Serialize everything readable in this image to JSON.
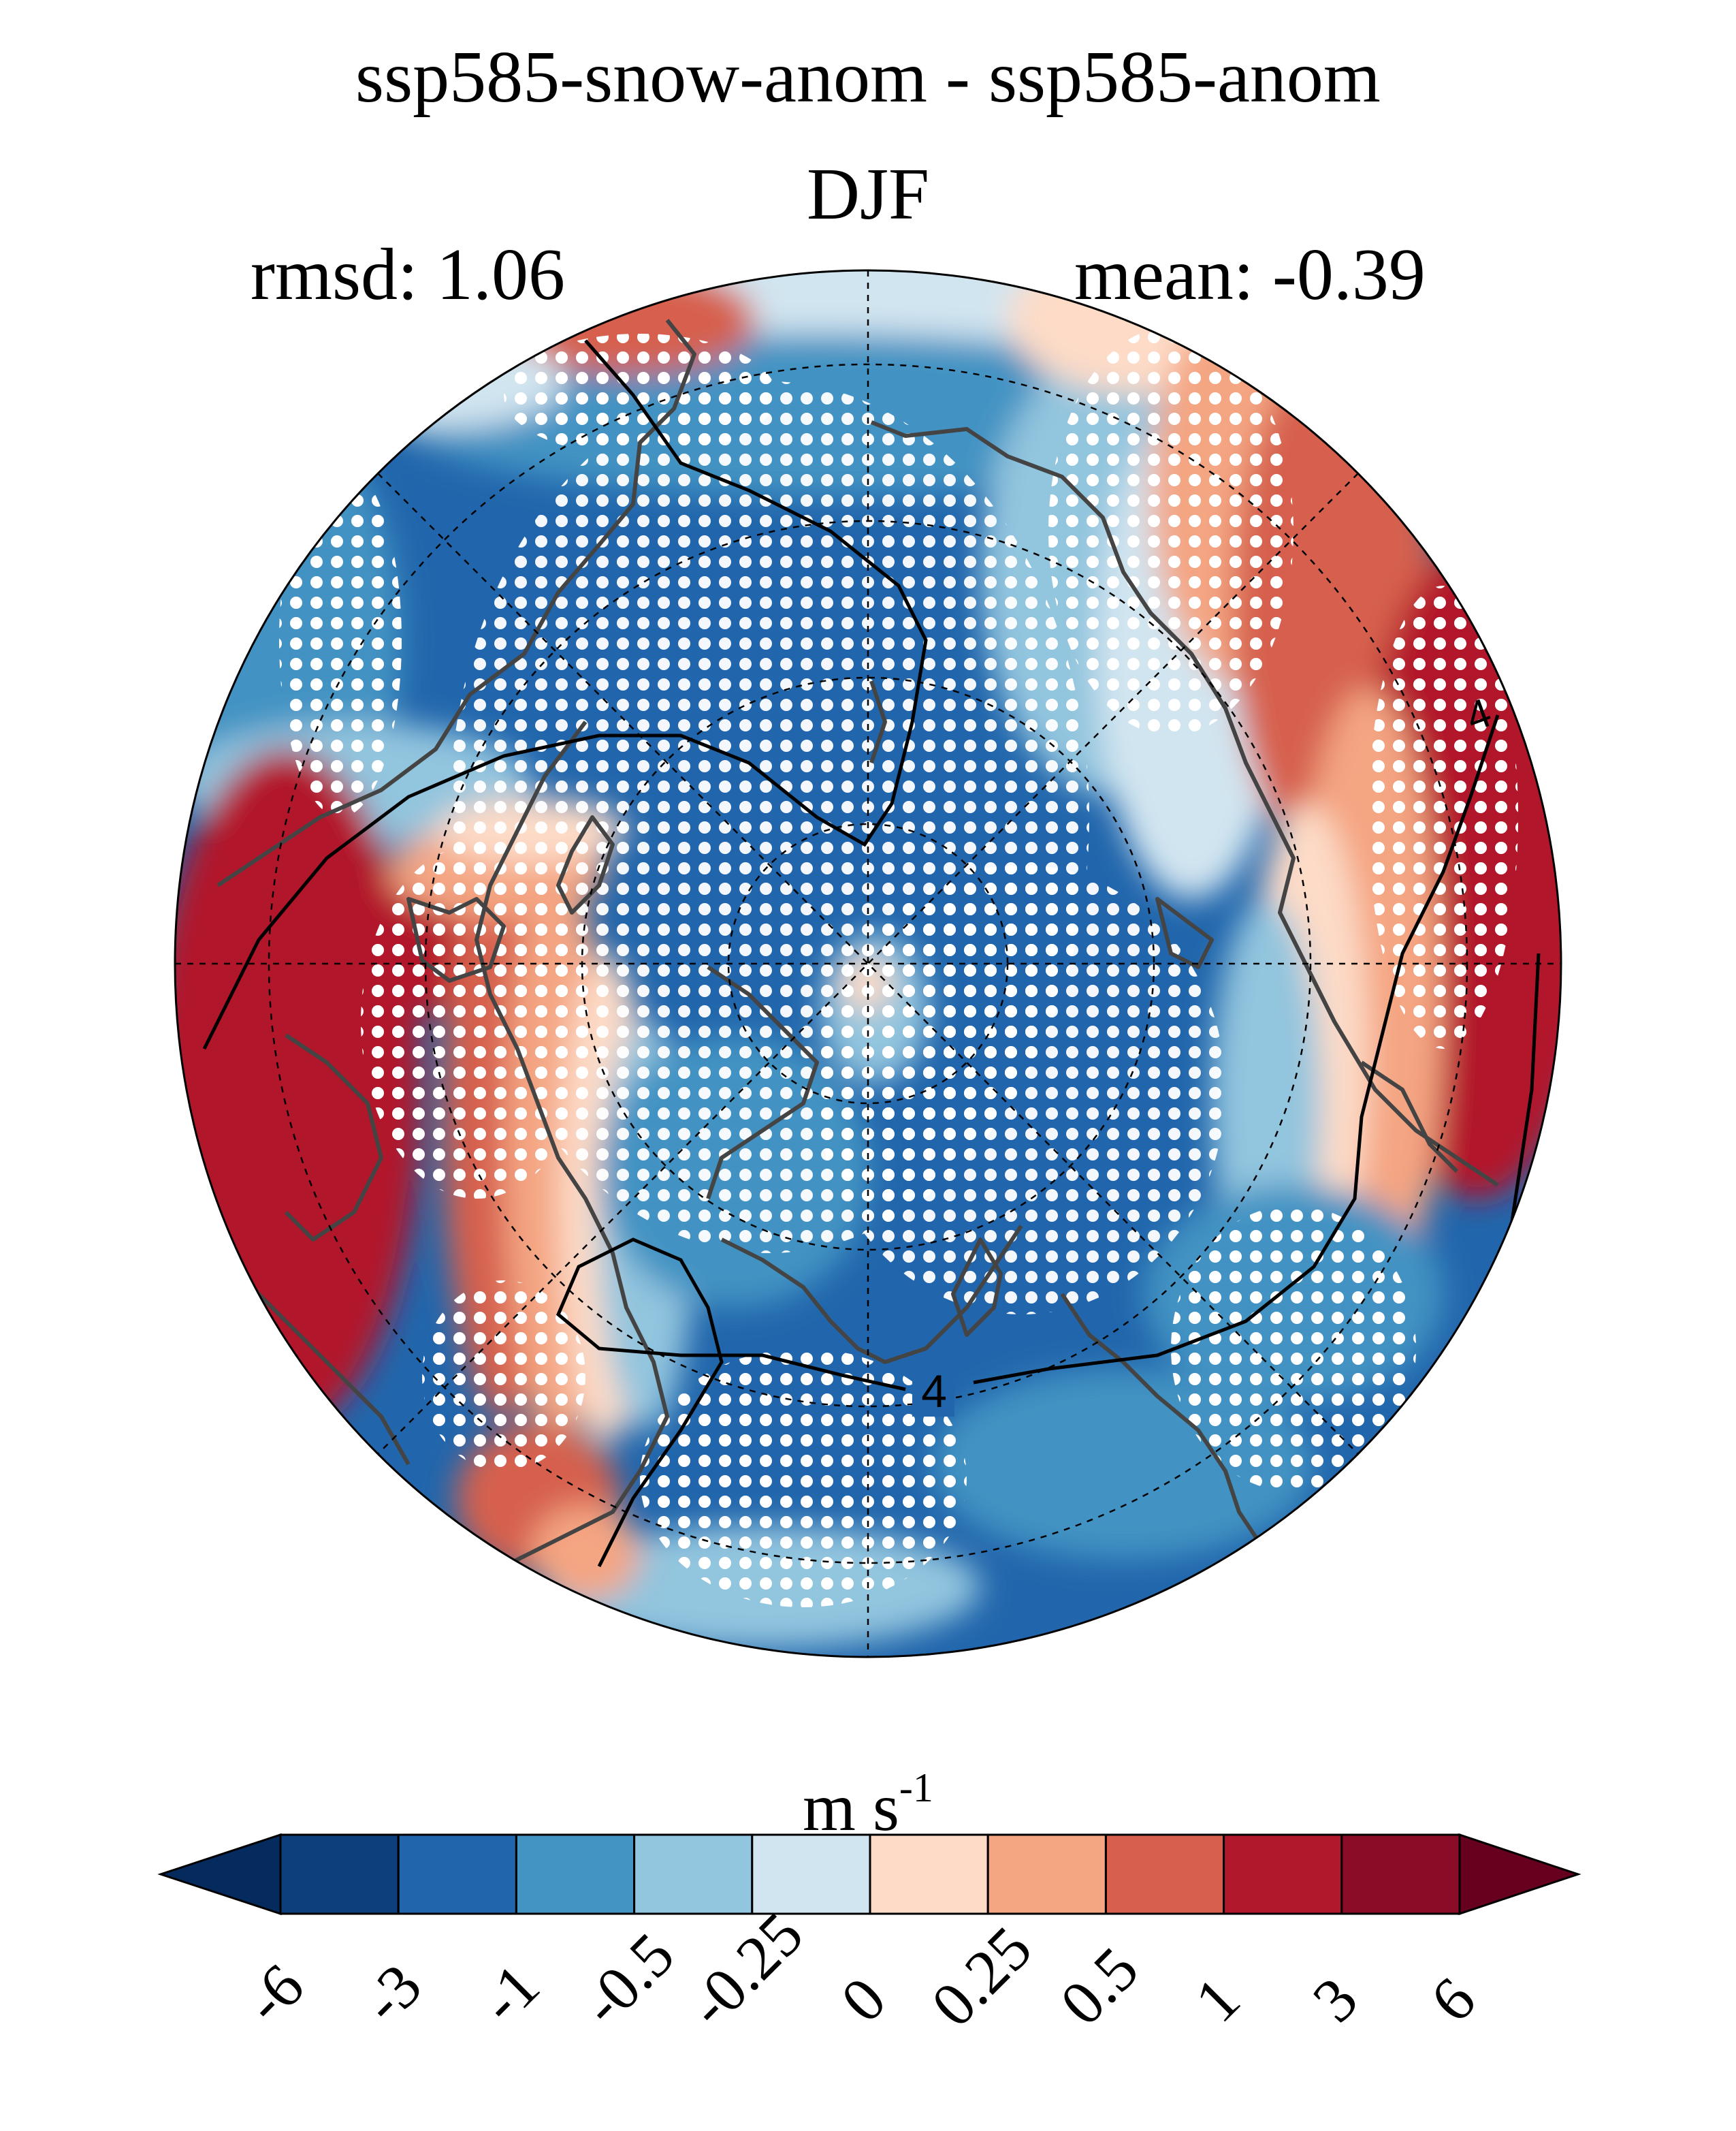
{
  "title": "ssp585-snow-anom - ssp585-anom",
  "season": "DJF",
  "stats": {
    "rmsd_label": "rmsd: 1.06",
    "mean_label": "mean: -0.39"
  },
  "contour_labels": [
    "4",
    "4"
  ],
  "map": {
    "projection": "north-polar-stereographic",
    "stippling": "white dots mark significant areas",
    "coastline_color": "#444444"
  },
  "colorbar": {
    "unit": "m s",
    "unit_exponent": "-1",
    "tick_labels": [
      "-6",
      "-3",
      "-1",
      "-0.5",
      "-0.25",
      "0",
      "0.25",
      "0.5",
      "1",
      "3",
      "6"
    ],
    "colors": [
      "#052a5e",
      "#0c3f7c",
      "#2166ac",
      "#4393c3",
      "#92c5de",
      "#d1e5f0",
      "#fddbc7",
      "#f4a582",
      "#d6604d",
      "#b2182b",
      "#8a0c26",
      "#67001f"
    ]
  }
}
